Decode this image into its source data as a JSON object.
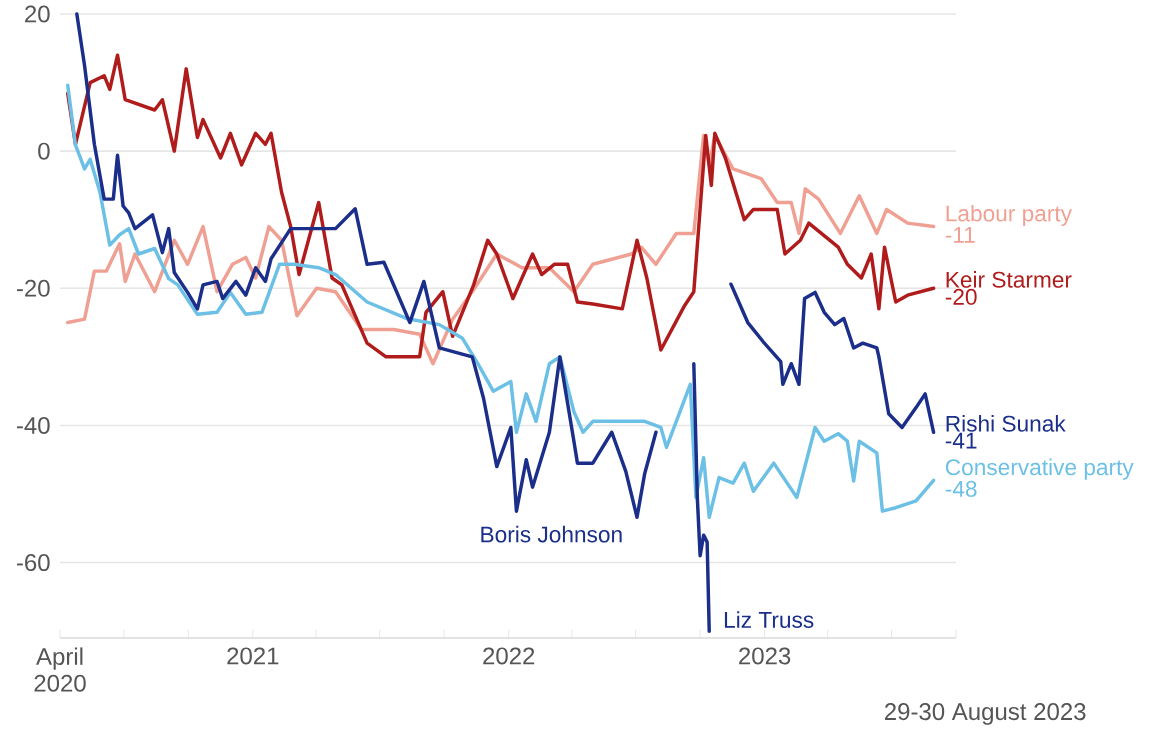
{
  "chart_data": {
    "type": "line",
    "xlim": [
      "2020-04-01",
      "2023-10-01"
    ],
    "ylim": [
      -71,
      20
    ],
    "xticks": [
      {
        "value": "2020-04-01",
        "label": "April 2020"
      },
      {
        "value": "2020-07-01",
        "label": null
      },
      {
        "value": "2020-10-01",
        "label": null
      },
      {
        "value": "2021-01-01",
        "label": "2021"
      },
      {
        "value": "2021-04-01",
        "label": null
      },
      {
        "value": "2021-07-01",
        "label": null
      },
      {
        "value": "2021-10-01",
        "label": null
      },
      {
        "value": "2022-01-01",
        "label": "2022"
      },
      {
        "value": "2022-04-01",
        "label": null
      },
      {
        "value": "2022-07-01",
        "label": null
      },
      {
        "value": "2022-10-01",
        "label": null
      },
      {
        "value": "2023-01-01",
        "label": "2023"
      },
      {
        "value": "2023-04-01",
        "label": null
      },
      {
        "value": "2023-07-01",
        "label": null
      },
      {
        "value": "2023-10-01",
        "label": null
      }
    ],
    "yticks": [
      20,
      0,
      -20,
      -40,
      -60
    ],
    "grid": "y",
    "series": [
      {
        "name": "Labour party",
        "color": "#f0a093",
        "x": [
          "2020-04-12",
          "2020-05-06",
          "2020-05-20",
          "2020-06-06",
          "2020-06-25",
          "2020-07-03",
          "2020-07-17",
          "2020-08-14",
          "2020-09-11",
          "2020-09-30",
          "2020-10-22",
          "2020-11-11",
          "2020-12-03",
          "2020-12-22",
          "2021-01-05",
          "2021-01-24",
          "2021-02-11",
          "2021-03-05",
          "2021-04-02",
          "2021-04-29",
          "2021-06-05",
          "2021-07-21",
          "2021-08-27",
          "2021-09-15",
          "2021-10-13",
          "2021-11-10",
          "2021-12-15",
          "2022-01-20",
          "2022-02-28",
          "2022-04-04",
          "2022-05-01",
          "2022-06-25",
          "2022-07-09",
          "2022-07-30",
          "2022-08-28",
          "2022-09-22",
          "2022-10-06",
          "2022-10-14",
          "2022-10-22",
          "2022-11-17",
          "2022-12-27",
          "2023-01-19",
          "2023-02-08",
          "2023-02-19",
          "2023-02-28",
          "2023-03-19",
          "2023-04-19",
          "2023-05-16",
          "2023-06-10",
          "2023-06-24",
          "2023-07-24",
          "2023-08-30"
        ],
        "values": [
          -25,
          -24.5,
          -17.5,
          -17.5,
          -13.5,
          -19,
          -15,
          -20.5,
          -13,
          -16.5,
          -11,
          -20.5,
          -16.5,
          -15.5,
          -18.5,
          -11,
          -13,
          -24,
          -20,
          -20.5,
          -26,
          -26,
          -26.7,
          -31,
          -24.5,
          -20.5,
          -15,
          -17,
          -17,
          -20.5,
          -16.5,
          -15,
          -14,
          -16.5,
          -12,
          -12,
          2.3,
          -2,
          2.3,
          -2.6,
          -4,
          -7.5,
          -7.5,
          -12,
          -5.5,
          -7,
          -12,
          -6.5,
          -12,
          -8.5,
          -10.5,
          -11
        ]
      },
      {
        "name": "Keir Starmer",
        "color": "#b01c1c",
        "x": [
          "2020-04-12",
          "2020-04-23",
          "2020-05-14",
          "2020-06-03",
          "2020-06-11",
          "2020-06-22",
          "2020-07-03",
          "2020-08-14",
          "2020-08-25",
          "2020-09-11",
          "2020-09-28",
          "2020-10-14",
          "2020-10-22",
          "2020-11-16",
          "2020-11-30",
          "2020-12-16",
          "2021-01-05",
          "2021-01-19",
          "2021-01-27",
          "2021-02-11",
          "2021-02-24",
          "2021-03-08",
          "2021-04-05",
          "2021-04-24",
          "2021-05-08",
          "2021-06-13",
          "2021-07-10",
          "2021-08-27",
          "2021-09-05",
          "2021-09-29",
          "2021-10-13",
          "2021-11-12",
          "2021-12-02",
          "2021-12-15",
          "2022-01-07",
          "2022-02-04",
          "2022-02-17",
          "2022-03-07",
          "2022-03-26",
          "2022-04-09",
          "2022-05-01",
          "2022-06-12",
          "2022-07-03",
          "2022-07-17",
          "2022-08-06",
          "2022-09-09",
          "2022-09-22",
          "2022-10-09",
          "2022-10-17",
          "2022-10-22",
          "2022-11-06",
          "2022-12-03",
          "2022-12-16",
          "2023-01-19",
          "2023-01-30",
          "2023-02-21",
          "2023-03-05",
          "2023-04-16",
          "2023-04-29",
          "2023-05-19",
          "2023-06-02",
          "2023-06-13",
          "2023-06-21",
          "2023-07-07",
          "2023-07-24",
          "2023-08-30"
        ],
        "values": [
          8.4,
          1,
          10,
          11,
          9,
          14,
          7.5,
          6,
          7.5,
          0,
          12,
          2,
          4.6,
          -1,
          2.6,
          -2,
          2.6,
          1,
          2.6,
          -6,
          -11,
          -18,
          -7.5,
          -18.5,
          -19.5,
          -28,
          -30,
          -30,
          -23.5,
          -20.5,
          -27,
          -19.5,
          -13,
          -15,
          -21.5,
          -15,
          -18,
          -16.5,
          -16.5,
          -22,
          -22.3,
          -23,
          -13,
          -18.5,
          -29,
          -22.5,
          -20.5,
          2.3,
          -5,
          2.6,
          -1,
          -10,
          -8.5,
          -8.5,
          -15,
          -13,
          -10.5,
          -14,
          -16.5,
          -18.5,
          -15,
          -23,
          -14,
          -22,
          -21,
          -20
        ]
      },
      {
        "name": "Rishi Sunak",
        "color": "#1b2f8a",
        "x": [
          "2022-11-14",
          "2022-12-08",
          "2022-12-30",
          "2023-01-24",
          "2023-01-27",
          "2023-02-08",
          "2023-02-19",
          "2023-02-27",
          "2023-03-14",
          "2023-03-27",
          "2023-04-11",
          "2023-04-24",
          "2023-05-08",
          "2023-05-21",
          "2023-06-10",
          "2023-06-13",
          "2023-06-27",
          "2023-07-16",
          "2023-08-05",
          "2023-08-18",
          "2023-08-30"
        ],
        "values": [
          -19.4,
          -25,
          -27.8,
          -30.7,
          -34,
          -31,
          -34,
          -21.5,
          -20.6,
          -23.5,
          -25.3,
          -24.4,
          -28.7,
          -28,
          -28.7,
          -30,
          -38.3,
          -40.3,
          -37.4,
          -35.4,
          -41
        ]
      },
      {
        "name": "Conservative party",
        "color": "#6cc0e5",
        "x": [
          "2020-04-12",
          "2020-04-23",
          "2020-05-06",
          "2020-05-14",
          "2020-05-28",
          "2020-06-11",
          "2020-06-25",
          "2020-07-08",
          "2020-07-22",
          "2020-08-14",
          "2020-09-03",
          "2020-09-16",
          "2020-10-14",
          "2020-11-11",
          "2020-11-30",
          "2020-12-22",
          "2021-01-14",
          "2021-02-08",
          "2021-03-01",
          "2021-04-05",
          "2021-04-29",
          "2021-06-13",
          "2021-08-08",
          "2021-09-24",
          "2021-10-27",
          "2021-11-18",
          "2021-12-10",
          "2022-01-04",
          "2022-01-12",
          "2022-01-26",
          "2022-02-09",
          "2022-02-28",
          "2022-03-15",
          "2022-04-04",
          "2022-04-17",
          "2022-05-01",
          "2022-06-17",
          "2022-07-14",
          "2022-08-06",
          "2022-08-14",
          "2022-09-17",
          "2022-09-25",
          "2022-10-06",
          "2022-10-14",
          "2022-10-28",
          "2022-11-17",
          "2022-12-03",
          "2022-12-16",
          "2023-01-14",
          "2023-02-16",
          "2023-03-14",
          "2023-03-27",
          "2023-04-16",
          "2023-04-29",
          "2023-05-08",
          "2023-05-16",
          "2023-06-10",
          "2023-06-18",
          "2023-07-07",
          "2023-08-05",
          "2023-08-30"
        ],
        "values": [
          9.6,
          0.9,
          -2.6,
          -1.2,
          -6,
          -13.7,
          -12.2,
          -11.3,
          -15,
          -14.2,
          -18.6,
          -19.5,
          -23.8,
          -23.5,
          -20.6,
          -23.8,
          -23.5,
          -16.5,
          -16.5,
          -17,
          -18,
          -22,
          -24.4,
          -25.3,
          -27.3,
          -31,
          -35,
          -33.6,
          -41,
          -35.4,
          -39.4,
          -31,
          -30,
          -38,
          -41,
          -39.4,
          -39.4,
          -39.4,
          -40.3,
          -43.2,
          -34,
          -50.5,
          -44.7,
          -53.4,
          -47.6,
          -48.4,
          -45.5,
          -49.6,
          -45.5,
          -50.5,
          -40.3,
          -42.3,
          -41.2,
          -42.3,
          -48.1,
          -42.3,
          -44,
          -52.5,
          -52,
          -51,
          -48
        ]
      },
      {
        "name": "Boris Johnson",
        "color": "#1b2f8a",
        "x": [
          "2020-04-25",
          "2020-05-06",
          "2020-05-20",
          "2020-06-03",
          "2020-06-16",
          "2020-06-22",
          "2020-06-30",
          "2020-07-08",
          "2020-07-17",
          "2020-08-11",
          "2020-08-25",
          "2020-09-03",
          "2020-09-11",
          "2020-09-30",
          "2020-10-14",
          "2020-10-22",
          "2020-11-11",
          "2020-11-19",
          "2020-12-08",
          "2020-12-22",
          "2021-01-05",
          "2021-01-19",
          "2021-01-27",
          "2021-02-24",
          "2021-04-29",
          "2021-05-27",
          "2021-06-13",
          "2021-07-07",
          "2021-08-13",
          "2021-09-02",
          "2021-09-24",
          "2021-11-10",
          "2021-11-26",
          "2021-12-15",
          "2022-01-04",
          "2022-01-12",
          "2022-01-26",
          "2022-02-04",
          "2022-02-28",
          "2022-03-15",
          "2022-04-04",
          "2022-04-09",
          "2022-05-01",
          "2022-05-28",
          "2022-06-17",
          "2022-07-03",
          "2022-07-14",
          "2022-07-30"
        ],
        "values": [
          20,
          12.5,
          1,
          -7,
          -7,
          -0.6,
          -8,
          -9,
          -11.3,
          -9.3,
          -14.8,
          -11.3,
          -17.7,
          -20.6,
          -23,
          -19.5,
          -19,
          -21.5,
          -19,
          -21,
          -17,
          -19,
          -15.7,
          -11.3,
          -11.3,
          -8.4,
          -16.5,
          -16.2,
          -25,
          -19,
          -28.7,
          -30,
          -36,
          -46,
          -40.3,
          -52.5,
          -45,
          -49,
          -41,
          -30,
          -42.3,
          -45.5,
          -45.5,
          -41,
          -46.7,
          -53.4,
          -47,
          -41
        ]
      },
      {
        "name": "Liz Truss",
        "color": "#1b2f8a",
        "x": [
          "2022-09-22",
          "2022-09-27",
          "2022-10-01",
          "2022-10-06",
          "2022-10-11",
          "2022-10-14"
        ],
        "values": [
          -31,
          -50.5,
          -59,
          -56,
          -57,
          -70
        ]
      }
    ],
    "annotations": [
      {
        "text": "-11",
        "x": "2023-08-30",
        "y": -11
      },
      {
        "text": "-20",
        "x": "2023-08-30",
        "y": -20
      },
      {
        "text": "-41",
        "x": "2023-08-30",
        "y": -41
      },
      {
        "text": "-48",
        "x": "2023-08-30",
        "y": -48
      },
      "29-30 August 2023"
    ]
  }
}
